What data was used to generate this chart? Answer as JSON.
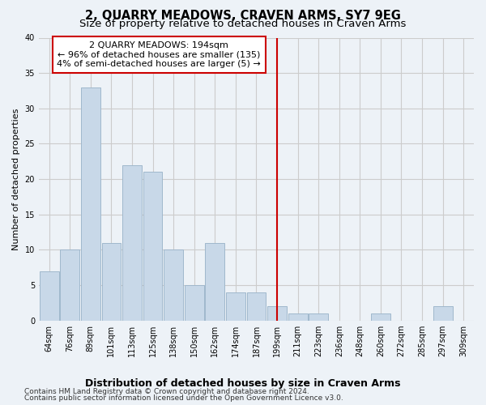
{
  "title": "2, QUARRY MEADOWS, CRAVEN ARMS, SY7 9EG",
  "subtitle": "Size of property relative to detached houses in Craven Arms",
  "xlabel": "Distribution of detached houses by size in Craven Arms",
  "ylabel": "Number of detached properties",
  "footer_line1": "Contains HM Land Registry data © Crown copyright and database right 2024.",
  "footer_line2": "Contains public sector information licensed under the Open Government Licence v3.0.",
  "categories": [
    "64sqm",
    "76sqm",
    "89sqm",
    "101sqm",
    "113sqm",
    "125sqm",
    "138sqm",
    "150sqm",
    "162sqm",
    "174sqm",
    "187sqm",
    "199sqm",
    "211sqm",
    "223sqm",
    "236sqm",
    "248sqm",
    "260sqm",
    "272sqm",
    "285sqm",
    "297sqm",
    "309sqm"
  ],
  "values": [
    7,
    10,
    33,
    11,
    22,
    21,
    10,
    5,
    11,
    4,
    4,
    2,
    1,
    1,
    0,
    0,
    1,
    0,
    0,
    2,
    0
  ],
  "bar_color": "#c8d8e8",
  "bar_edgecolor": "#a0b8cc",
  "bar_linewidth": 0.7,
  "vline_x_index": 11,
  "vline_color": "#cc0000",
  "annotation_text": "2 QUARRY MEADOWS: 194sqm\n← 96% of detached houses are smaller (135)\n4% of semi-detached houses are larger (5) →",
  "annotation_box_edgecolor": "#cc0000",
  "annotation_box_facecolor": "#ffffff",
  "ylim": [
    0,
    40
  ],
  "yticks": [
    0,
    5,
    10,
    15,
    20,
    25,
    30,
    35,
    40
  ],
  "grid_color": "#cccccc",
  "background_color": "#edf2f7",
  "plot_background": "#edf2f7",
  "title_fontsize": 10.5,
  "subtitle_fontsize": 9.5,
  "xlabel_fontsize": 9,
  "ylabel_fontsize": 8,
  "tick_fontsize": 7,
  "annotation_fontsize": 8,
  "footer_fontsize": 6.5
}
